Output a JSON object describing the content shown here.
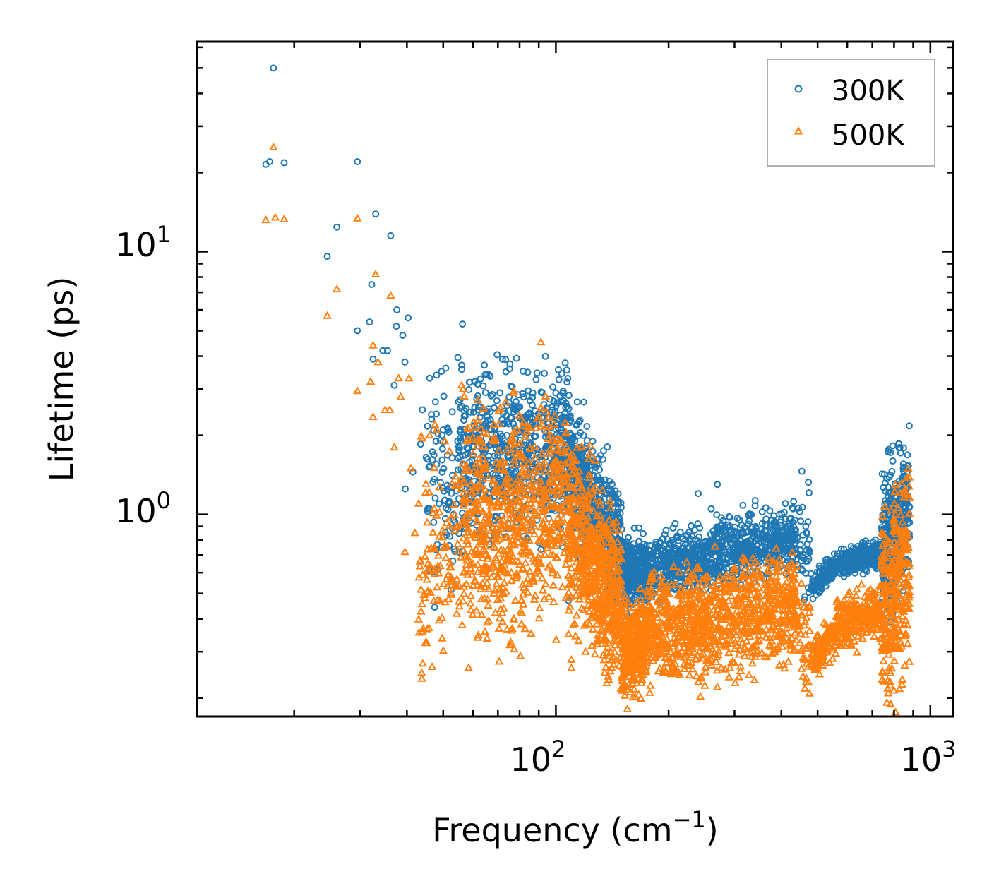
{
  "chart_data": {
    "type": "scatter",
    "title": "",
    "xlabel": "Frequency (cm",
    "xlabel_sup": "−1",
    "xlabel_end": ")",
    "ylabel": "Lifetime (ps)",
    "xscale": "log",
    "yscale": "log",
    "xlim": [
      11,
      1150
    ],
    "ylim": [
      0.17,
      63
    ],
    "x_ticks": [
      {
        "value": 100,
        "base": "10",
        "exp": "2"
      },
      {
        "value": 1000,
        "base": "10",
        "exp": "3"
      }
    ],
    "y_ticks": [
      {
        "value": 1,
        "base": "10",
        "exp": "0"
      },
      {
        "value": 10,
        "base": "10",
        "exp": "1"
      }
    ],
    "legend_position": "top-right",
    "series": [
      {
        "name": "300K",
        "marker": "circle",
        "color": "#1f77b4",
        "points": [
          [
            16.8,
            21.5
          ],
          [
            17.2,
            22
          ],
          [
            17.6,
            50
          ],
          [
            18.8,
            21.8
          ],
          [
            29.5,
            22
          ],
          [
            26.0,
            12.4
          ],
          [
            33.0,
            13.9
          ],
          [
            36.2,
            11.5
          ],
          [
            24.5,
            9.6
          ],
          [
            32.2,
            7.5
          ],
          [
            37.6,
            6.0
          ],
          [
            40.3,
            5.6
          ],
          [
            56.3,
            5.3
          ],
          [
            29.5,
            5.0
          ],
          [
            31.8,
            5.4
          ],
          [
            34.5,
            4.2
          ],
          [
            35.5,
            4.2
          ],
          [
            37.5,
            5.2
          ],
          [
            39.0,
            4.8
          ],
          [
            32.5,
            3.9
          ],
          [
            39.5,
            3.8
          ],
          [
            46.0,
            3.3
          ],
          [
            49.5,
            3.5
          ],
          [
            50.8,
            3.6
          ],
          [
            56.0,
            3.7
          ],
          [
            62.0,
            2.5
          ],
          [
            66.2,
            3.4
          ],
          [
            75.0,
            2.8
          ],
          [
            82.0,
            2.8
          ],
          [
            92.0,
            2.9
          ],
          [
            100.0,
            2.9
          ],
          [
            37.0,
            3.1
          ],
          [
            44.0,
            2.5
          ],
          [
            46.5,
            2.4
          ],
          [
            39.6,
            1.25
          ],
          [
            41.5,
            1.45
          ],
          [
            43.5,
            1.85
          ],
          [
            45.5,
            1.05
          ],
          [
            52.0,
            1.1
          ],
          [
            48.0,
            1.55
          ],
          [
            110.0,
            2.0
          ],
          [
            270.0,
            1.3
          ],
          [
            240.0,
            1.2
          ],
          [
            290.0,
            0.98
          ],
          [
            260.0,
            1.05
          ],
          [
            410.0,
            1.1
          ],
          [
            430.0,
            1.05
          ],
          [
            465.0,
            0.9
          ],
          [
            108.0,
            0.47
          ]
        ],
        "bands": [
          {
            "x_range": [
              45,
              55
            ],
            "y_center": [
              1.15,
              1.45
            ],
            "spread": 0.38,
            "n": 80
          },
          {
            "x_range": [
              55,
              108
            ],
            "y_center": [
              1.5,
              1.85
            ],
            "spread": 0.3,
            "n": 700
          },
          {
            "x_range": [
              108,
              150
            ],
            "y_center": [
              1.6,
              0.72
            ],
            "spread": 0.22,
            "n": 600
          },
          {
            "x_range": [
              150,
              175
            ],
            "y_center": [
              0.6,
              0.6
            ],
            "spread": 0.12,
            "n": 300
          },
          {
            "x_range": [
              175,
              440
            ],
            "y_center": [
              0.62,
              0.82
            ],
            "spread": 0.12,
            "n": 900
          },
          {
            "x_range": [
              440,
              480
            ],
            "y_center": [
              0.75,
              0.7
            ],
            "spread": 0.2,
            "n": 40
          },
          {
            "x_range": [
              480,
              560
            ],
            "y_center": [
              0.52,
              0.65
            ],
            "spread": 0.05,
            "n": 120
          },
          {
            "x_range": [
              560,
              740
            ],
            "y_center": [
              0.65,
              0.72
            ],
            "spread": 0.05,
            "n": 250
          },
          {
            "x_range": [
              740,
              880
            ],
            "y_center": [
              0.72,
              1.05
            ],
            "spread": 0.28,
            "n": 350
          }
        ]
      },
      {
        "name": "500K",
        "marker": "triangle",
        "color": "#ff7f0e",
        "points": [
          [
            16.8,
            13.2
          ],
          [
            17.6,
            25.0
          ],
          [
            17.8,
            13.5
          ],
          [
            18.8,
            13.3
          ],
          [
            29.5,
            13.4
          ],
          [
            26.0,
            7.2
          ],
          [
            24.5,
            5.7
          ],
          [
            33.0,
            8.2
          ],
          [
            36.2,
            6.8
          ],
          [
            29.5,
            2.95
          ],
          [
            32.0,
            3.2
          ],
          [
            32.5,
            4.4
          ],
          [
            33.5,
            3.8
          ],
          [
            35.0,
            2.5
          ],
          [
            36.0,
            2.5
          ],
          [
            38.0,
            3.3
          ],
          [
            40.5,
            3.3
          ],
          [
            38.5,
            2.8
          ],
          [
            37.0,
            1.8
          ],
          [
            32.5,
            2.35
          ],
          [
            41.0,
            1.5
          ],
          [
            43.0,
            1.1
          ],
          [
            39.5,
            0.72
          ],
          [
            42.0,
            0.85
          ],
          [
            44.0,
            1.95
          ],
          [
            46.0,
            2.0
          ],
          [
            48.0,
            2.1
          ],
          [
            50.5,
            1.9
          ],
          [
            56.0,
            3.1
          ],
          [
            56.5,
            3.0
          ],
          [
            47.5,
            2.2
          ],
          [
            55.0,
            1.3
          ],
          [
            108.0,
            0.35
          ],
          [
            110.0,
            0.28
          ],
          [
            115.0,
            0.33
          ],
          [
            120.0,
            0.3
          ],
          [
            110.0,
            0.26
          ],
          [
            460.0,
            0.28
          ],
          [
            270.0,
            0.22
          ],
          [
            290.0,
            0.24
          ],
          [
            240.0,
            0.23
          ],
          [
            210.0,
            0.25
          ]
        ],
        "bands": [
          {
            "x_range": [
              43,
              56
            ],
            "y_center": [
              0.6,
              0.75
            ],
            "spread": 0.35,
            "n": 110
          },
          {
            "x_range": [
              56,
              108
            ],
            "y_center": [
              0.85,
              1.1
            ],
            "spread": 0.42,
            "n": 700
          },
          {
            "x_range": [
              108,
              150
            ],
            "y_center": [
              0.95,
              0.42
            ],
            "spread": 0.3,
            "n": 650
          },
          {
            "x_range": [
              150,
              175
            ],
            "y_center": [
              0.3,
              0.33
            ],
            "spread": 0.18,
            "n": 320
          },
          {
            "x_range": [
              175,
              440
            ],
            "y_center": [
              0.36,
              0.46
            ],
            "spread": 0.2,
            "n": 950
          },
          {
            "x_range": [
              440,
              480
            ],
            "y_center": [
              0.42,
              0.3
            ],
            "spread": 0.2,
            "n": 40
          },
          {
            "x_range": [
              480,
              560
            ],
            "y_center": [
              0.29,
              0.35
            ],
            "spread": 0.08,
            "n": 120
          },
          {
            "x_range": [
              560,
              740
            ],
            "y_center": [
              0.38,
              0.44
            ],
            "spread": 0.1,
            "n": 250
          },
          {
            "x_range": [
              740,
              880
            ],
            "y_center": [
              0.42,
              0.62
            ],
            "spread": 0.35,
            "n": 330
          }
        ]
      }
    ]
  }
}
